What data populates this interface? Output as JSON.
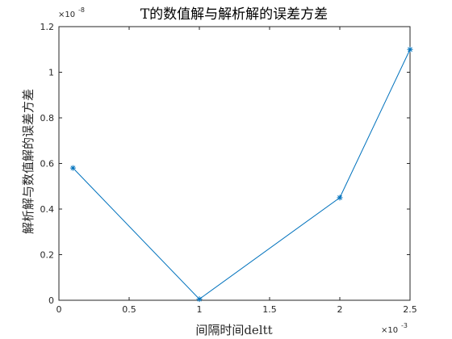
{
  "chart_data": {
    "type": "line",
    "title": "T的数值解与解析解的误差方差",
    "xlabel": "间隔时间deltt",
    "ylabel": "解析解与数值解的误差方差",
    "x_exponent": "×10",
    "x_exponent_power": "-3",
    "y_exponent": "×10",
    "y_exponent_power": "-8",
    "xlim": [
      0,
      2.5
    ],
    "ylim": [
      0,
      1.2
    ],
    "xticks": [
      0,
      0.5,
      1,
      1.5,
      2,
      2.5
    ],
    "yticks": [
      0,
      0.2,
      0.4,
      0.6,
      0.8,
      1,
      1.2
    ],
    "xtick_labels": [
      "0",
      "0.5",
      "1",
      "1.5",
      "2",
      "2.5"
    ],
    "ytick_labels": [
      "0",
      "0.2",
      "0.4",
      "0.6",
      "0.8",
      "1",
      "1.2"
    ],
    "series": [
      {
        "x": [
          0.1,
          1,
          2,
          2.5
        ],
        "y": [
          0.58,
          0.005,
          0.45,
          1.1
        ],
        "color": "#0072BD",
        "marker": "*"
      }
    ],
    "grid": false,
    "legend": false
  }
}
